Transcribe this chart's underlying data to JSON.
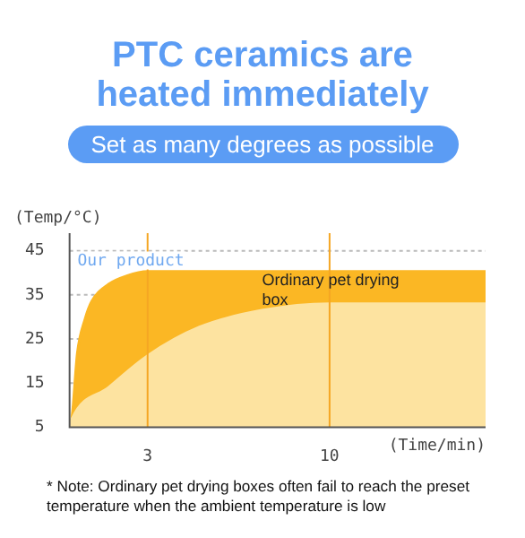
{
  "chart_data": {
    "type": "area",
    "title": "PTC ceramics are heated immediately",
    "subtitle": "Set as many degrees as possible",
    "xlabel": "(Time/min)",
    "ylabel": "(Temp/°C)",
    "annotations": [
      "* Note: Ordinary pet drying boxes often fail to reach the preset temperature when the ambient temperature is low"
    ],
    "xlim": [
      0,
      16
    ],
    "ylim": [
      5,
      49
    ],
    "xticks": [
      3,
      10
    ],
    "yticks": [
      5,
      15,
      25,
      35,
      45
    ],
    "grid": "y",
    "ref_lines": [
      {
        "axis": "x",
        "value": 3,
        "color": "#f5a623"
      },
      {
        "axis": "x",
        "value": 10,
        "color": "#f5a623"
      }
    ],
    "series": [
      {
        "name": "Our product",
        "color": "#fbb724",
        "x": [
          0,
          0.1,
          0.3,
          0.6,
          0.85,
          1.5,
          2.2,
          3,
          6,
          10,
          16
        ],
        "values": [
          5,
          7.6,
          21.8,
          29.6,
          33.5,
          37.4,
          39.3,
          40.3,
          40.3,
          40.3,
          40.3
        ]
      },
      {
        "name": "Ordinary pet drying box",
        "color": "#fde3a0",
        "x": [
          0,
          0.1,
          1.5,
          3,
          5,
          7.4,
          10,
          16
        ],
        "values": [
          5,
          7,
          14,
          21.2,
          27.7,
          31.5,
          33,
          33
        ]
      }
    ]
  }
}
